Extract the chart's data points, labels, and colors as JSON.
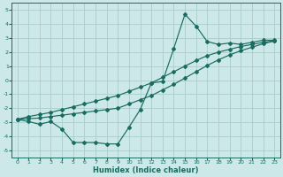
{
  "xlabel": "Humidex (Indice chaleur)",
  "bg_color": "#cce8e8",
  "grid_color": "#aacccc",
  "line_color": "#1a6b60",
  "xlim": [
    -0.5,
    23.5
  ],
  "ylim": [
    -5.5,
    5.5
  ],
  "xticks": [
    0,
    1,
    2,
    3,
    4,
    5,
    6,
    7,
    8,
    9,
    10,
    11,
    12,
    13,
    14,
    15,
    16,
    17,
    18,
    19,
    20,
    21,
    22,
    23
  ],
  "yticks": [
    -5,
    -4,
    -3,
    -2,
    -1,
    0,
    1,
    2,
    3,
    4,
    5
  ],
  "line1_x": [
    0,
    1,
    2,
    3,
    4,
    5,
    6,
    7,
    8,
    9,
    10,
    11,
    12,
    13,
    14,
    15,
    16,
    17,
    18,
    19,
    20,
    21,
    22,
    23
  ],
  "line1_y": [
    -2.8,
    -2.95,
    -3.15,
    -2.95,
    -3.5,
    -4.45,
    -4.45,
    -4.45,
    -4.55,
    -4.55,
    -3.35,
    -2.1,
    -0.2,
    -0.1,
    2.25,
    4.7,
    3.85,
    2.75,
    2.55,
    2.65,
    2.55,
    2.7,
    2.85,
    2.85
  ],
  "line2_x": [
    0,
    1,
    2,
    3,
    4,
    5,
    6,
    7,
    8,
    9,
    10,
    11,
    12,
    13,
    14,
    15,
    16,
    17,
    18,
    19,
    20,
    21,
    22,
    23
  ],
  "line2_y": [
    -2.8,
    -2.6,
    -2.45,
    -2.3,
    -2.1,
    -1.9,
    -1.7,
    -1.5,
    -1.3,
    -1.1,
    -0.8,
    -0.5,
    -0.2,
    0.2,
    0.6,
    1.0,
    1.4,
    1.75,
    2.0,
    2.2,
    2.4,
    2.55,
    2.7,
    2.8
  ],
  "line3_x": [
    0,
    1,
    2,
    3,
    4,
    5,
    6,
    7,
    8,
    9,
    10,
    11,
    12,
    13,
    14,
    15,
    16,
    17,
    18,
    19,
    20,
    21,
    22,
    23
  ],
  "line3_y": [
    -2.8,
    -2.75,
    -2.7,
    -2.6,
    -2.5,
    -2.4,
    -2.3,
    -2.2,
    -2.1,
    -2.0,
    -1.7,
    -1.4,
    -1.1,
    -0.7,
    -0.3,
    0.15,
    0.6,
    1.05,
    1.45,
    1.8,
    2.1,
    2.35,
    2.6,
    2.8
  ]
}
